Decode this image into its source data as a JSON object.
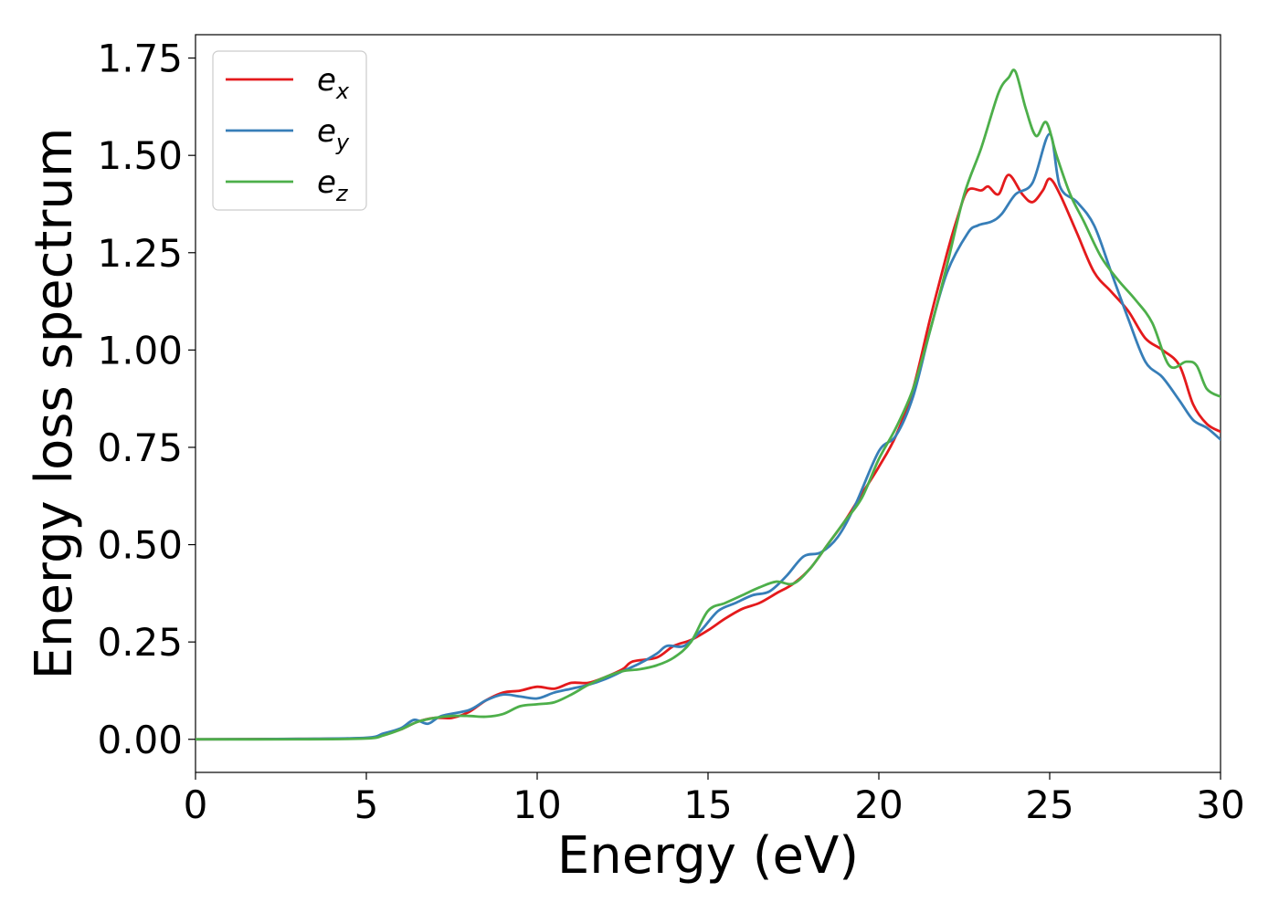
{
  "chart_data": {
    "type": "line",
    "xlabel": "Energy (eV)",
    "ylabel": "Energy loss spectrum",
    "xlim": [
      0,
      30
    ],
    "ylim": [
      -0.085,
      1.81
    ],
    "xticks": [
      0,
      5,
      10,
      15,
      20,
      25,
      30
    ],
    "xtick_labels": [
      "0",
      "5",
      "10",
      "15",
      "20",
      "25",
      "30"
    ],
    "yticks": [
      0.0,
      0.25,
      0.5,
      0.75,
      1.0,
      1.25,
      1.5,
      1.75
    ],
    "ytick_labels": [
      "0.00",
      "0.25",
      "0.50",
      "0.75",
      "1.00",
      "1.25",
      "1.50",
      "1.75"
    ],
    "grid": false,
    "legend_position": "top-left",
    "series": [
      {
        "name": "e",
        "subscript": "x",
        "color": "#e41a1c",
        "points": [
          [
            0,
            0
          ],
          [
            3,
            0.001
          ],
          [
            5,
            0.003
          ],
          [
            5.5,
            0.012
          ],
          [
            6,
            0.025
          ],
          [
            6.5,
            0.045
          ],
          [
            7,
            0.055
          ],
          [
            7.5,
            0.055
          ],
          [
            8,
            0.07
          ],
          [
            8.5,
            0.1
          ],
          [
            9,
            0.12
          ],
          [
            9.5,
            0.125
          ],
          [
            10,
            0.135
          ],
          [
            10.5,
            0.13
          ],
          [
            11,
            0.145
          ],
          [
            11.5,
            0.145
          ],
          [
            12,
            0.16
          ],
          [
            12.5,
            0.18
          ],
          [
            12.8,
            0.2
          ],
          [
            13.5,
            0.21
          ],
          [
            14,
            0.24
          ],
          [
            14.5,
            0.255
          ],
          [
            15,
            0.28
          ],
          [
            15.5,
            0.31
          ],
          [
            16,
            0.335
          ],
          [
            16.5,
            0.35
          ],
          [
            17,
            0.375
          ],
          [
            17.5,
            0.4
          ],
          [
            18,
            0.44
          ],
          [
            18.5,
            0.5
          ],
          [
            19,
            0.56
          ],
          [
            19.5,
            0.63
          ],
          [
            20,
            0.7
          ],
          [
            20.5,
            0.78
          ],
          [
            21,
            0.9
          ],
          [
            21.5,
            1.08
          ],
          [
            22,
            1.25
          ],
          [
            22.3,
            1.34
          ],
          [
            22.6,
            1.41
          ],
          [
            23,
            1.41
          ],
          [
            23.2,
            1.42
          ],
          [
            23.5,
            1.4
          ],
          [
            23.8,
            1.45
          ],
          [
            24.2,
            1.4
          ],
          [
            24.5,
            1.38
          ],
          [
            24.8,
            1.41
          ],
          [
            25,
            1.44
          ],
          [
            25.3,
            1.4
          ],
          [
            25.8,
            1.3
          ],
          [
            26.3,
            1.2
          ],
          [
            26.8,
            1.15
          ],
          [
            27.3,
            1.1
          ],
          [
            27.8,
            1.03
          ],
          [
            28.3,
            1.0
          ],
          [
            28.8,
            0.96
          ],
          [
            29.2,
            0.86
          ],
          [
            29.6,
            0.81
          ],
          [
            30,
            0.79
          ]
        ]
      },
      {
        "name": "e",
        "subscript": "y",
        "color": "#377eb8",
        "points": [
          [
            0,
            0
          ],
          [
            3,
            0.001
          ],
          [
            5,
            0.004
          ],
          [
            5.5,
            0.015
          ],
          [
            6,
            0.028
          ],
          [
            6.4,
            0.05
          ],
          [
            6.8,
            0.04
          ],
          [
            7.2,
            0.06
          ],
          [
            8,
            0.075
          ],
          [
            8.5,
            0.1
          ],
          [
            9,
            0.115
          ],
          [
            9.5,
            0.11
          ],
          [
            10,
            0.105
          ],
          [
            10.5,
            0.12
          ],
          [
            11,
            0.13
          ],
          [
            11.5,
            0.14
          ],
          [
            12,
            0.155
          ],
          [
            12.5,
            0.175
          ],
          [
            13,
            0.195
          ],
          [
            13.5,
            0.22
          ],
          [
            13.8,
            0.24
          ],
          [
            14.3,
            0.24
          ],
          [
            14.8,
            0.28
          ],
          [
            15.3,
            0.33
          ],
          [
            15.8,
            0.35
          ],
          [
            16.3,
            0.37
          ],
          [
            16.8,
            0.38
          ],
          [
            17.3,
            0.42
          ],
          [
            17.8,
            0.47
          ],
          [
            18.3,
            0.48
          ],
          [
            18.8,
            0.52
          ],
          [
            19.3,
            0.6
          ],
          [
            20,
            0.74
          ],
          [
            20.5,
            0.78
          ],
          [
            21,
            0.88
          ],
          [
            21.5,
            1.05
          ],
          [
            22,
            1.2
          ],
          [
            22.6,
            1.3
          ],
          [
            22.9,
            1.32
          ],
          [
            23.3,
            1.33
          ],
          [
            23.6,
            1.35
          ],
          [
            24,
            1.4
          ],
          [
            24.5,
            1.43
          ],
          [
            25,
            1.555
          ],
          [
            25.3,
            1.42
          ],
          [
            25.8,
            1.38
          ],
          [
            26.3,
            1.32
          ],
          [
            26.8,
            1.2
          ],
          [
            27.3,
            1.08
          ],
          [
            27.8,
            0.97
          ],
          [
            28.3,
            0.93
          ],
          [
            28.8,
            0.87
          ],
          [
            29.2,
            0.82
          ],
          [
            29.6,
            0.8
          ],
          [
            30,
            0.77
          ]
        ]
      },
      {
        "name": "e",
        "subscript": "z",
        "color": "#4daf4a",
        "points": [
          [
            0,
            0
          ],
          [
            3,
            0.0
          ],
          [
            5,
            0.002
          ],
          [
            5.5,
            0.01
          ],
          [
            6,
            0.025
          ],
          [
            6.5,
            0.045
          ],
          [
            7,
            0.055
          ],
          [
            7.5,
            0.06
          ],
          [
            8,
            0.06
          ],
          [
            8.5,
            0.058
          ],
          [
            9,
            0.065
          ],
          [
            9.5,
            0.085
          ],
          [
            10,
            0.09
          ],
          [
            10.5,
            0.095
          ],
          [
            11,
            0.115
          ],
          [
            11.5,
            0.14
          ],
          [
            12,
            0.16
          ],
          [
            12.5,
            0.175
          ],
          [
            13,
            0.18
          ],
          [
            13.5,
            0.19
          ],
          [
            14,
            0.21
          ],
          [
            14.5,
            0.25
          ],
          [
            15,
            0.33
          ],
          [
            15.5,
            0.35
          ],
          [
            16,
            0.37
          ],
          [
            16.5,
            0.39
          ],
          [
            17,
            0.405
          ],
          [
            17.5,
            0.4
          ],
          [
            18,
            0.44
          ],
          [
            18.5,
            0.5
          ],
          [
            19,
            0.56
          ],
          [
            19.5,
            0.62
          ],
          [
            20,
            0.72
          ],
          [
            20.5,
            0.8
          ],
          [
            21,
            0.9
          ],
          [
            21.5,
            1.05
          ],
          [
            22,
            1.22
          ],
          [
            22.5,
            1.4
          ],
          [
            23,
            1.52
          ],
          [
            23.5,
            1.66
          ],
          [
            23.8,
            1.7
          ],
          [
            24,
            1.715
          ],
          [
            24.3,
            1.62
          ],
          [
            24.6,
            1.55
          ],
          [
            24.9,
            1.585
          ],
          [
            25.2,
            1.5
          ],
          [
            25.6,
            1.4
          ],
          [
            26,
            1.33
          ],
          [
            26.5,
            1.24
          ],
          [
            27,
            1.18
          ],
          [
            27.5,
            1.13
          ],
          [
            28,
            1.07
          ],
          [
            28.5,
            0.96
          ],
          [
            29,
            0.97
          ],
          [
            29.3,
            0.96
          ],
          [
            29.6,
            0.9
          ],
          [
            30,
            0.88
          ]
        ]
      }
    ]
  }
}
